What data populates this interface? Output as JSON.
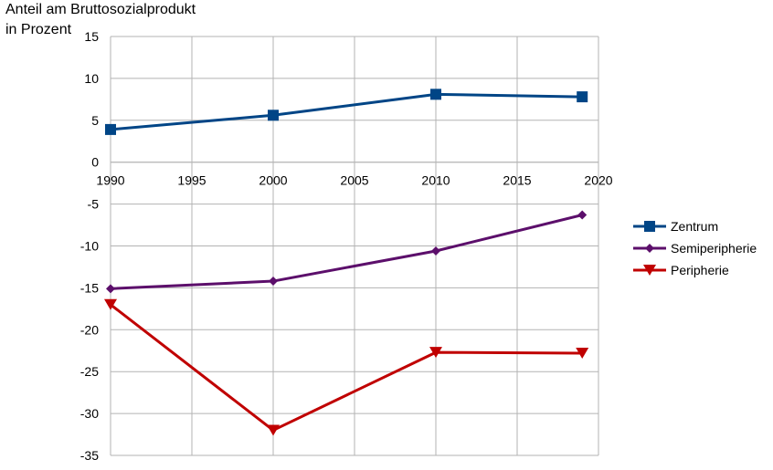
{
  "chart_data": {
    "type": "line",
    "ylabel_lines": [
      "Anteil am Bruttosozialprodukt",
      "in Prozent"
    ],
    "xlabel": "",
    "xlim": [
      1990,
      2020
    ],
    "ylim": [
      -35,
      15
    ],
    "x_ticks": [
      1990,
      1995,
      2000,
      2005,
      2010,
      2015,
      2020
    ],
    "y_ticks": [
      15,
      10,
      5,
      0,
      -5,
      -10,
      -15,
      -20,
      -25,
      -30,
      -35
    ],
    "x_axis_at": 0,
    "grid": "horizontal",
    "legend_position": "right",
    "series": [
      {
        "name": "Zentrum",
        "color": "#004586",
        "marker": "square",
        "x": [
          1990,
          2000,
          2010,
          2019
        ],
        "y": [
          3.9,
          5.6,
          8.1,
          7.8
        ]
      },
      {
        "name": "Semiperipherie",
        "color": "#5C0F6B",
        "marker": "diamond",
        "x": [
          1990,
          2000,
          2010,
          2019
        ],
        "y": [
          -15.1,
          -14.2,
          -10.6,
          -6.3
        ]
      },
      {
        "name": "Peripherie",
        "color": "#C00000",
        "marker": "triangle-down",
        "x": [
          1990,
          2000,
          2010,
          2019
        ],
        "y": [
          -17.0,
          -32.0,
          -22.7,
          -22.8
        ]
      }
    ]
  }
}
